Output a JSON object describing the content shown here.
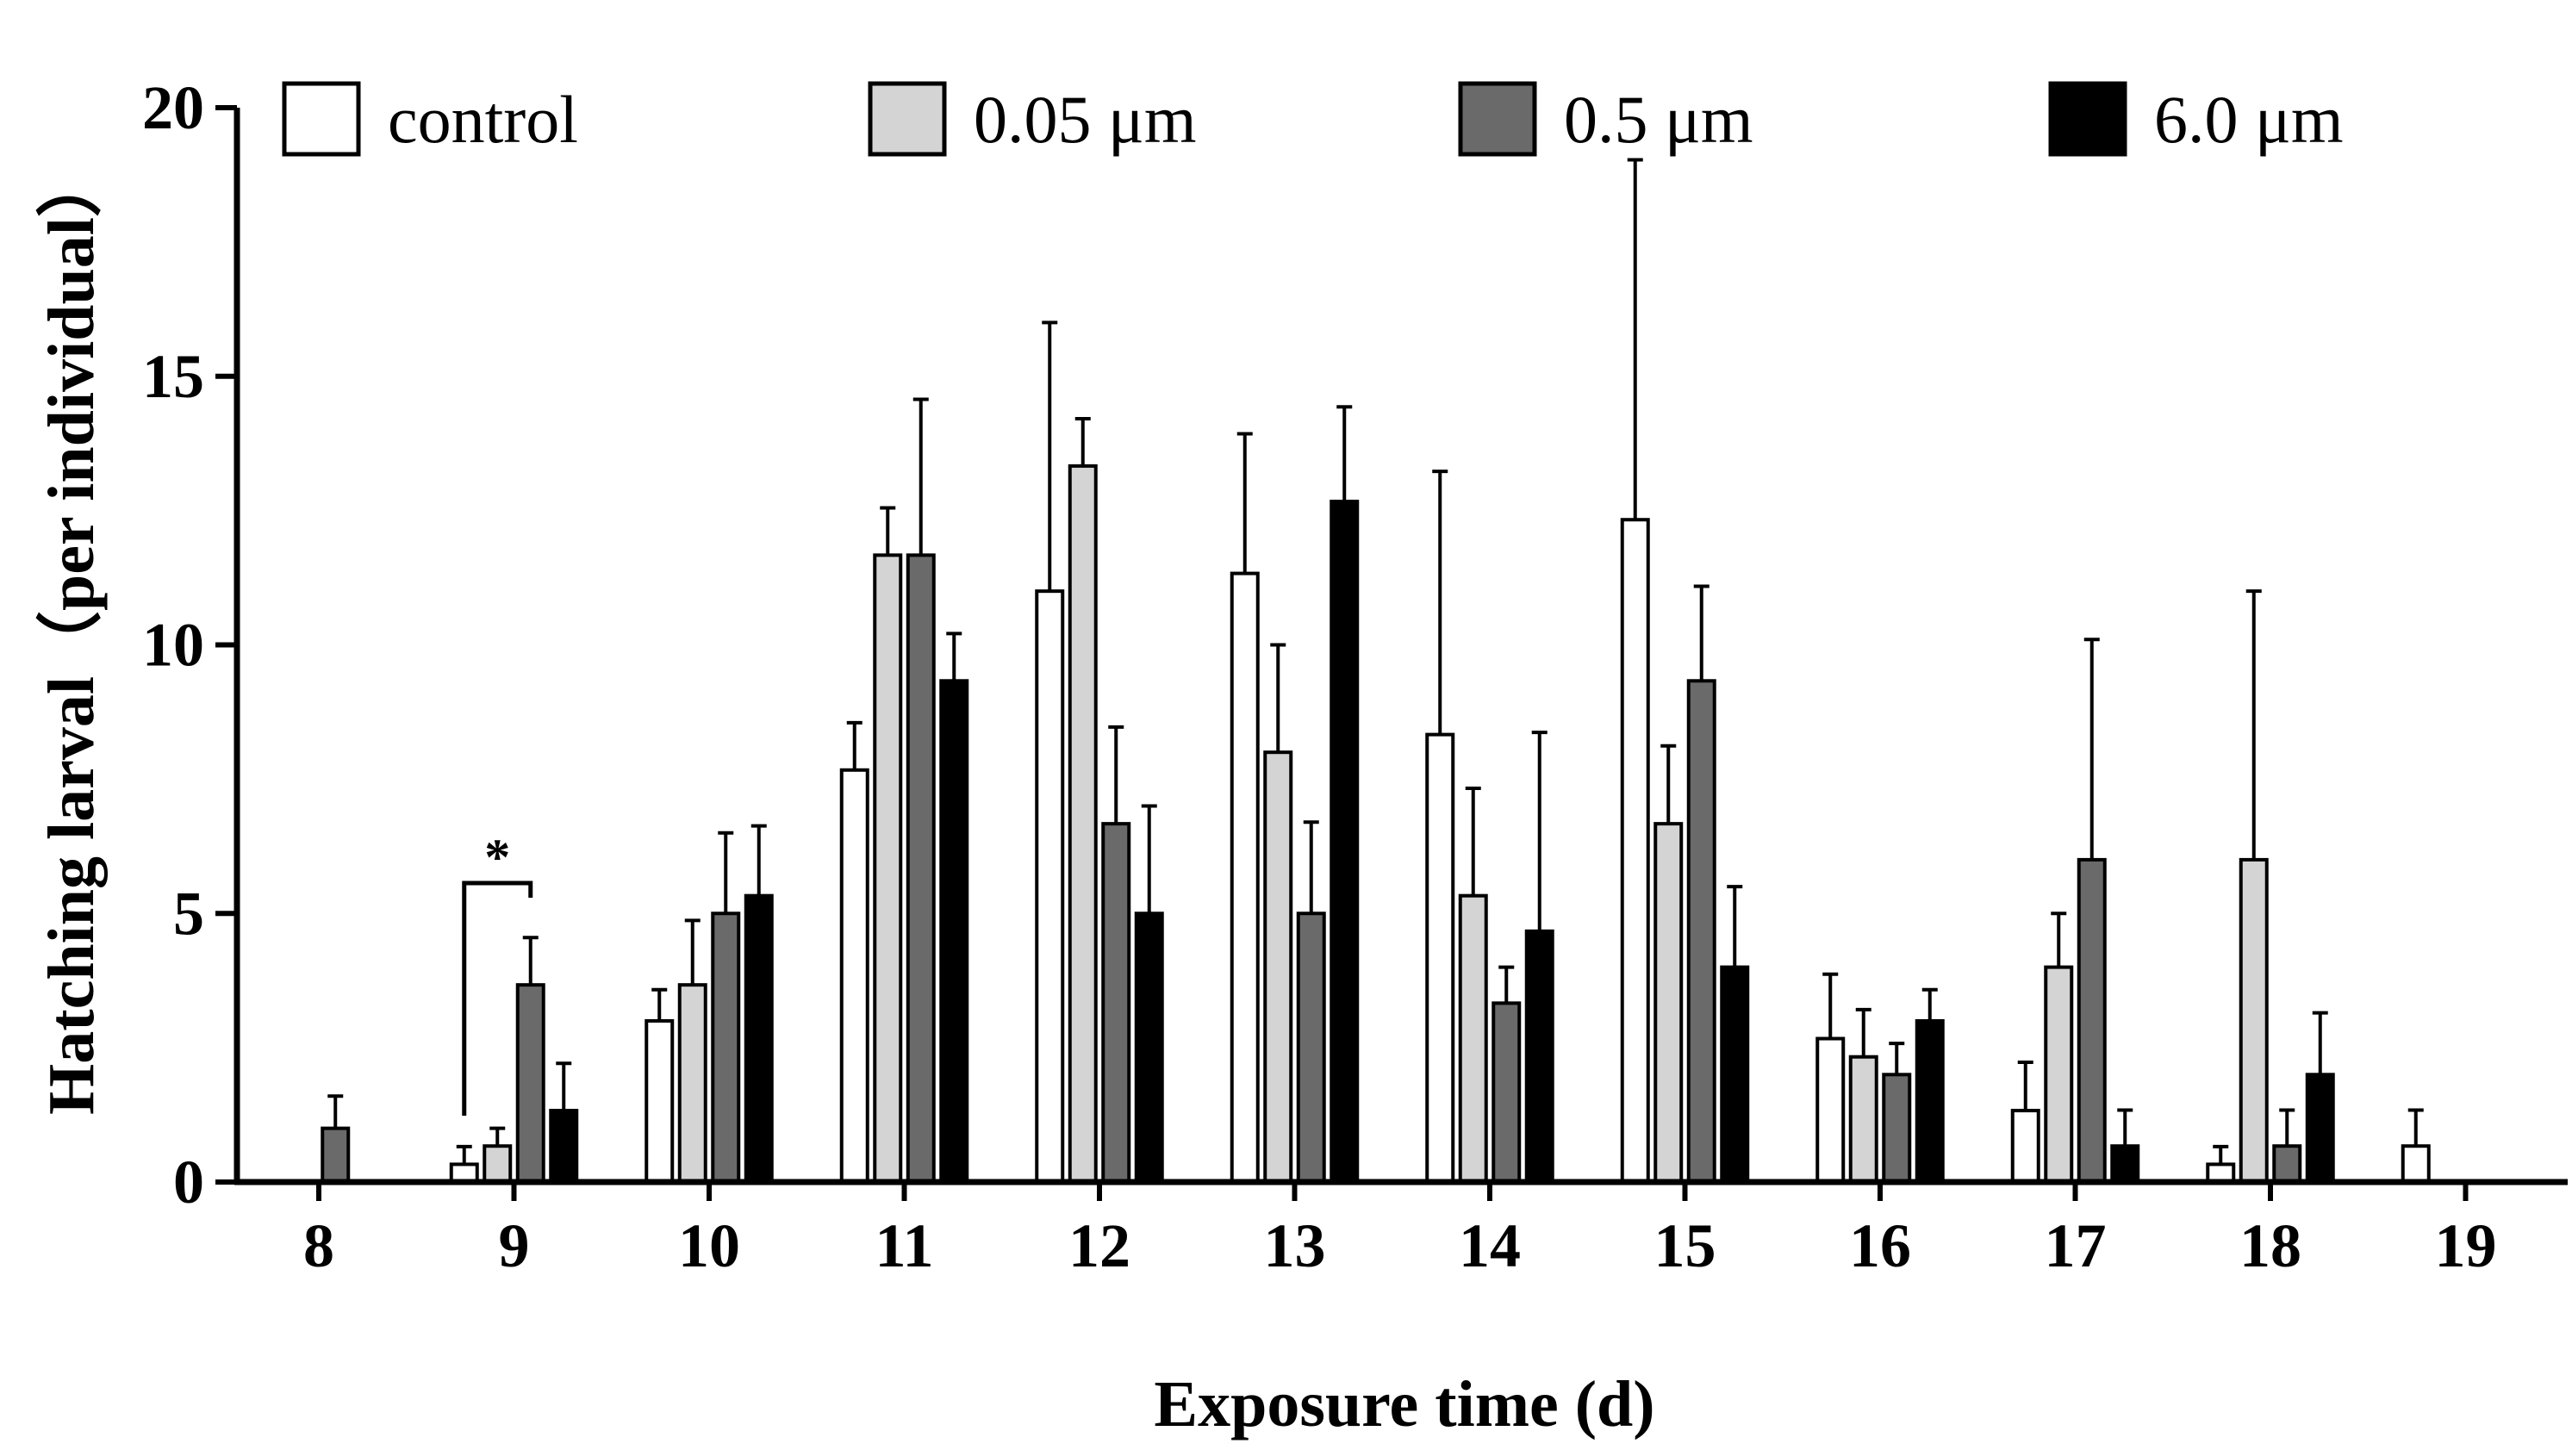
{
  "chart_data": {
    "type": "bar",
    "title": "",
    "xlabel": "Exposure time (d)",
    "ylabel": "Hatching larval（per individual）",
    "ylim": [
      0,
      20
    ],
    "yticks": [
      "0",
      "5",
      "10",
      "15",
      "20"
    ],
    "categories": [
      "8",
      "9",
      "10",
      "11",
      "12",
      "13",
      "14",
      "15",
      "16",
      "17",
      "18",
      "19"
    ],
    "series": [
      {
        "name": "control",
        "color": "#ffffff",
        "values": [
          0,
          0.33,
          3.0,
          7.67,
          11.0,
          11.33,
          8.33,
          12.33,
          2.67,
          1.33,
          0.33,
          0.67
        ],
        "errors": [
          0,
          0.33,
          0.58,
          0.88,
          5.0,
          2.6,
          4.9,
          6.7,
          1.2,
          0.9,
          0.33,
          0.67
        ]
      },
      {
        "name": "0.05 μm",
        "color": "#d4d4d4",
        "values": [
          0,
          0.67,
          3.67,
          11.67,
          13.33,
          8.0,
          5.33,
          6.67,
          2.33,
          4.0,
          6.0,
          0
        ],
        "errors": [
          0,
          0.33,
          1.2,
          0.88,
          0.88,
          2.0,
          2.0,
          1.45,
          0.88,
          1.0,
          5.0,
          0
        ]
      },
      {
        "name": "0.5 μm",
        "color": "#6a6a6a",
        "values": [
          1.0,
          3.67,
          5.0,
          11.67,
          6.67,
          5.0,
          3.33,
          9.33,
          2.0,
          6.0,
          0.67,
          0
        ],
        "errors": [
          0.6,
          0.88,
          1.5,
          2.9,
          1.8,
          1.7,
          0.67,
          1.76,
          0.58,
          4.1,
          0.67,
          0
        ]
      },
      {
        "name": "6.0 μm",
        "color": "#000000",
        "values": [
          0,
          1.33,
          5.33,
          9.33,
          5.0,
          12.67,
          4.67,
          4.0,
          3.0,
          0.67,
          2.0,
          0
        ],
        "errors": [
          0,
          0.88,
          1.3,
          0.88,
          2.0,
          1.76,
          3.7,
          1.5,
          0.58,
          0.67,
          1.15,
          0
        ]
      }
    ],
    "annotations": [
      {
        "text": "*",
        "category": "9",
        "between_series": [
          "control",
          "0.5 μm"
        ]
      }
    ],
    "legend_position": "top"
  }
}
